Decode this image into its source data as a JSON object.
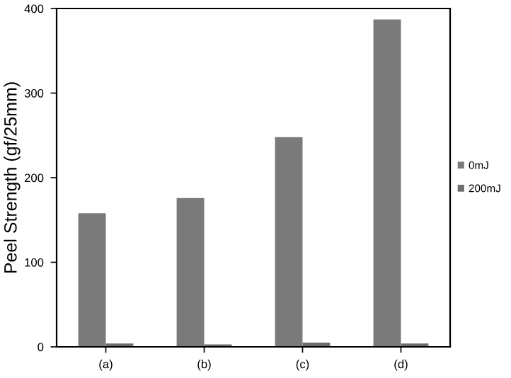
{
  "chart_data": {
    "type": "bar",
    "ylabel": "Peel Strength (gf/25mm)",
    "categories": [
      "(a)",
      "(b)",
      "(c)",
      "(d)"
    ],
    "series": [
      {
        "name": "0mJ",
        "color": "#7a7a7a",
        "values": [
          158,
          176,
          248,
          387
        ]
      },
      {
        "name": "200mJ",
        "color": "#6e6e6e",
        "values": [
          4,
          3,
          5,
          4
        ]
      }
    ],
    "ylim": [
      0,
      400
    ],
    "yticks": [
      0,
      100,
      200,
      300,
      400
    ],
    "grid": false,
    "legend": "right"
  }
}
